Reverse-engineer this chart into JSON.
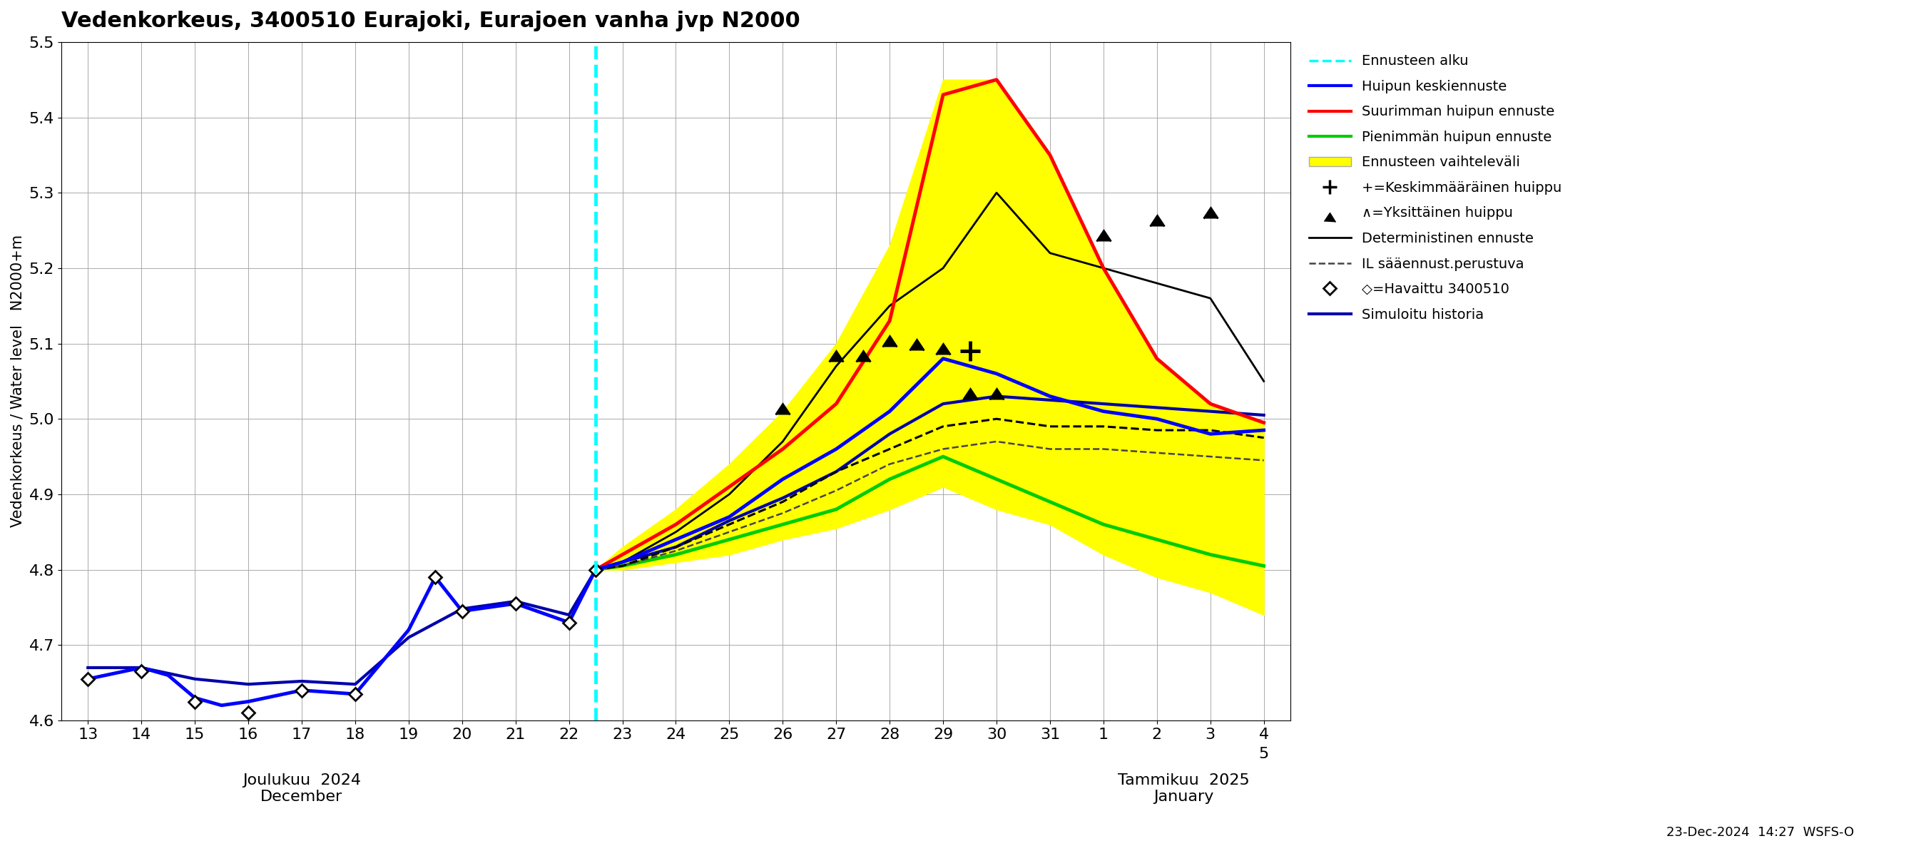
{
  "title": "Vedenkorkeus, 3400510 Eurajoki, Eurajoen vanha jvp N2000",
  "ylabel": "Vedenkorkeus / Water level   N2000+m",
  "ylim": [
    4.6,
    5.5
  ],
  "yticks": [
    4.6,
    4.7,
    4.8,
    4.9,
    5.0,
    5.1,
    5.2,
    5.3,
    5.4,
    5.5
  ],
  "forecast_start_x": 22.5,
  "footnote": "23-Dec-2024  14:27  WSFS-O",
  "xlabel_dec": "Joulukuu  2024\nDecember",
  "xlabel_jan": "Tammikuu  2025\nJanuary",
  "x_observed": [
    13,
    14,
    14.5,
    15,
    15.5,
    16,
    17,
    18,
    19,
    19.5,
    20,
    21,
    22,
    22.5
  ],
  "y_observed": [
    4.655,
    4.67,
    4.66,
    4.63,
    4.62,
    4.625,
    4.64,
    4.635,
    4.72,
    4.79,
    4.745,
    4.755,
    4.73,
    4.8
  ],
  "x_diamonds": [
    13,
    14,
    15,
    16,
    17,
    18,
    19.5,
    20,
    21,
    22,
    22.5
  ],
  "y_diamonds": [
    4.655,
    4.665,
    4.625,
    4.61,
    4.64,
    4.635,
    4.79,
    4.745,
    4.755,
    4.73,
    4.8
  ],
  "x_simulated": [
    13,
    14,
    15,
    16,
    17,
    18,
    19,
    20,
    21,
    22,
    22.5,
    23,
    24,
    25,
    26,
    27,
    28,
    29,
    30,
    31,
    32,
    33,
    34,
    35
  ],
  "y_simulated": [
    4.67,
    4.67,
    4.655,
    4.648,
    4.652,
    4.648,
    4.71,
    4.748,
    4.758,
    4.74,
    4.8,
    4.81,
    4.83,
    4.865,
    4.895,
    4.93,
    4.98,
    5.02,
    5.03,
    5.025,
    5.02,
    5.015,
    5.01,
    5.005
  ],
  "x_forecast_all": [
    22.5,
    23,
    24,
    25,
    26,
    27,
    28,
    29,
    30,
    31,
    32,
    33,
    34,
    35
  ],
  "y_peak_mean": [
    4.8,
    4.81,
    4.84,
    4.87,
    4.92,
    4.96,
    5.01,
    5.08,
    5.06,
    5.03,
    5.01,
    5.0,
    4.98,
    4.985
  ],
  "y_peak_max": [
    4.8,
    4.82,
    4.86,
    4.91,
    4.96,
    5.02,
    5.13,
    5.43,
    5.45,
    5.35,
    5.2,
    5.08,
    5.02,
    4.995
  ],
  "y_peak_min": [
    4.8,
    4.805,
    4.82,
    4.84,
    4.86,
    4.88,
    4.92,
    4.95,
    4.92,
    4.89,
    4.86,
    4.84,
    4.82,
    4.805
  ],
  "x_det": [
    22.5,
    23,
    24,
    25,
    26,
    27,
    28,
    29,
    30,
    31,
    32,
    33,
    34,
    35
  ],
  "y_det": [
    4.8,
    4.805,
    4.83,
    4.86,
    4.89,
    4.93,
    4.96,
    4.99,
    5.0,
    4.99,
    4.99,
    4.985,
    4.985,
    4.975
  ],
  "x_IL": [
    22.5,
    23,
    24,
    25,
    26,
    27,
    28,
    29,
    30,
    31,
    32,
    33,
    34,
    35
  ],
  "y_IL": [
    4.8,
    4.805,
    4.825,
    4.85,
    4.875,
    4.905,
    4.94,
    4.96,
    4.97,
    4.96,
    4.96,
    4.955,
    4.95,
    4.945
  ],
  "x_band_fill": [
    22.5,
    23,
    24,
    25,
    26,
    27,
    28,
    29,
    30,
    31,
    32,
    33,
    34,
    35
  ],
  "y_band_upper": [
    4.8,
    4.83,
    4.88,
    4.94,
    5.01,
    5.1,
    5.23,
    5.45,
    5.45,
    5.35,
    5.2,
    5.08,
    5.02,
    4.995
  ],
  "y_band_lower": [
    4.8,
    4.8,
    4.81,
    4.82,
    4.84,
    4.855,
    4.88,
    4.91,
    4.88,
    4.86,
    4.82,
    4.79,
    4.77,
    4.74
  ],
  "individual_peaks_x": [
    26,
    27,
    27.5,
    28,
    28.5,
    29,
    29.5,
    30,
    32,
    33,
    34
  ],
  "individual_peaks_y": [
    5.02,
    5.09,
    5.09,
    5.11,
    5.105,
    5.1,
    5.04,
    5.04,
    5.25,
    5.27,
    5.28
  ],
  "mean_peak_x": 29.5,
  "mean_peak_y": 5.09,
  "black_env_x": [
    22.5,
    23,
    24,
    25,
    26,
    27,
    28,
    29,
    30,
    31,
    32,
    33,
    34,
    35
  ],
  "black_env_y": [
    4.8,
    4.81,
    4.85,
    4.9,
    4.97,
    5.07,
    5.15,
    5.2,
    5.3,
    5.22,
    5.2,
    5.18,
    5.16,
    5.05
  ],
  "xtick_positions": [
    13,
    14,
    15,
    16,
    17,
    18,
    19,
    20,
    21,
    22,
    23,
    24,
    25,
    26,
    27,
    28,
    29,
    30,
    31,
    32,
    33,
    34,
    35
  ],
  "xtick_labels": [
    "13",
    "14",
    "15",
    "16",
    "17",
    "18",
    "19",
    "20",
    "21",
    "22",
    "23",
    "24",
    "25",
    "26",
    "27",
    "28",
    "29",
    "30",
    "31",
    "1",
    "2",
    "3",
    "4"
  ],
  "color_observed": "#0000FF",
  "color_simulated": "#0000AA",
  "color_mean": "#0000FF",
  "color_max": "#FF0000",
  "color_min": "#00CC00",
  "color_band": "#FFFF00",
  "color_det": "#000000",
  "color_forecast_line": "#00FFFF",
  "legend_labels": [
    "Ennusteen alku",
    "Huipun keskiennuste",
    "Suurimman huipun ennuste",
    "Pienimmän huipun ennuste",
    "Ennusteen vaihteleväli",
    "+=Keskimmääräinen huippu",
    "∧=Yksittäinen huippu",
    "Deterministinen ennuste",
    "IL sääennust.perustuva",
    "◇=Havaittu 3400510",
    "Simuloitu historia"
  ]
}
